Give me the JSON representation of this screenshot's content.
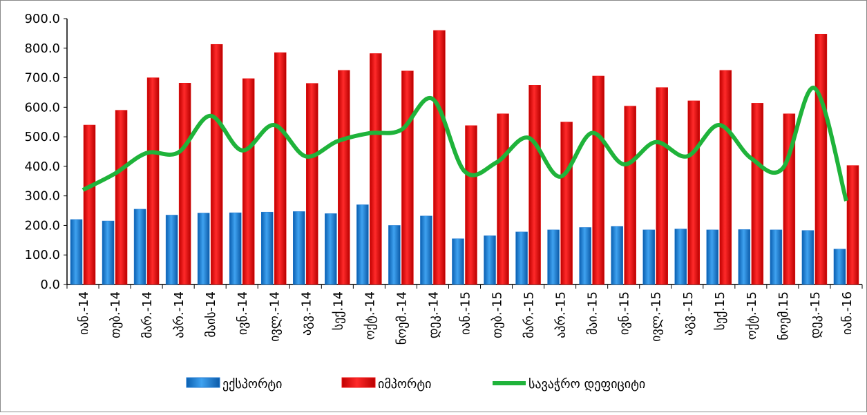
{
  "chart_data": {
    "type": "bar-line",
    "categories": [
      "იან.-14",
      "თებ.-14",
      "მარ.-14",
      "აპრ.-14",
      "მაის-14",
      "ივნ.-14",
      "ივლ.-14",
      "აგვ.-14",
      "სექ.14",
      "ოქტ.-14",
      "ნოემ.-14",
      "დეკ.-14",
      "იან.-15",
      "თებ.-15",
      "მარ.-15",
      "აპრ.-15",
      "მაი.-15",
      "ივნ.-15",
      "ივლ.-15",
      "აგვ.-15",
      "სექ.15",
      "ოქტ.-15",
      "ნოემ.15",
      "დეკ.-15",
      "იან.-16"
    ],
    "series": [
      {
        "name": "ექსპორტი",
        "type": "bar",
        "color": "#1f78d1",
        "values": [
          220,
          215,
          255,
          235,
          242,
          243,
          245,
          247,
          240,
          270,
          200,
          232,
          155,
          165,
          178,
          185,
          193,
          197,
          185,
          188,
          185,
          186,
          185,
          183,
          120
        ]
      },
      {
        "name": "იმპორტი",
        "type": "bar",
        "color": "#ee1111",
        "values": [
          540,
          590,
          700,
          682,
          813,
          697,
          785,
          681,
          725,
          782,
          723,
          860,
          538,
          578,
          675,
          550,
          706,
          604,
          667,
          622,
          725,
          614,
          578,
          848,
          403
        ]
      },
      {
        "name": "სავაჭრო დეფიციტი",
        "type": "line",
        "color": "#1fb33a",
        "values": [
          320,
          375,
          445,
          447,
          571,
          454,
          540,
          434,
          485,
          512,
          523,
          628,
          383,
          413,
          497,
          365,
          513,
          407,
          482,
          434,
          540,
          428,
          393,
          665,
          283
        ]
      }
    ],
    "ylim": [
      0,
      900
    ],
    "yticks": [
      {
        "value": 0,
        "label": "0.0"
      },
      {
        "value": 100,
        "label": "100.0"
      },
      {
        "value": 200,
        "label": "200.0"
      },
      {
        "value": 300,
        "label": "300.0"
      },
      {
        "value": 400,
        "label": "400.0"
      },
      {
        "value": 500,
        "label": "500.0"
      },
      {
        "value": 600,
        "label": "600.0"
      },
      {
        "value": 700,
        "label": "700.0"
      },
      {
        "value": 800,
        "label": "800.0"
      },
      {
        "value": 900,
        "label": "900.0"
      }
    ],
    "legend": "bottom"
  }
}
